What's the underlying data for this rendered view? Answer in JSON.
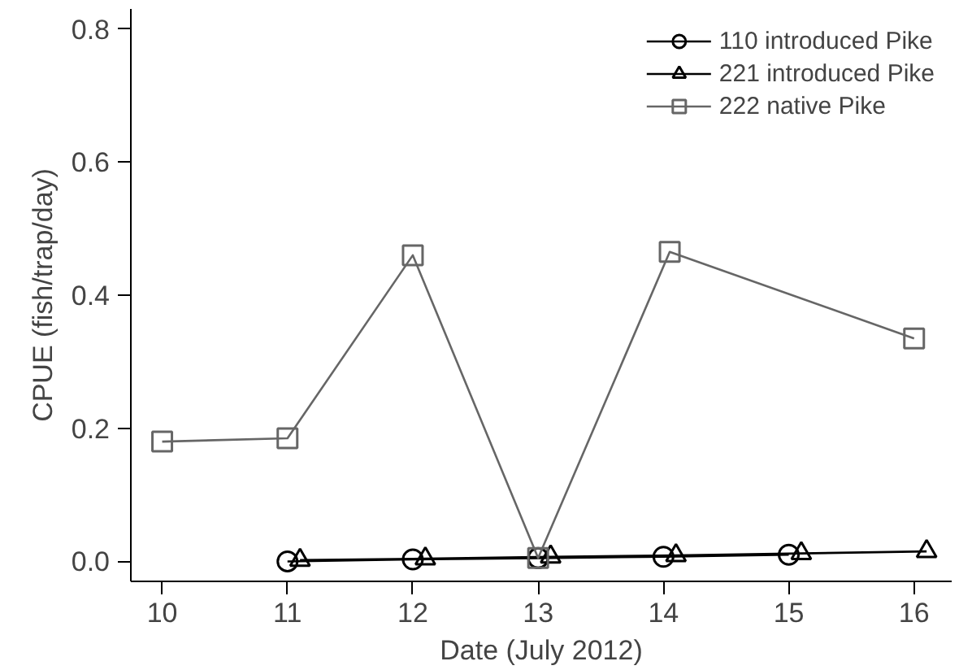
{
  "chart_data": {
    "type": "line",
    "xlabel": "Date (July 2012)",
    "ylabel": "CPUE (fish/trap/day)",
    "xlim": [
      9.75,
      16.3
    ],
    "xticks": [
      {
        "value": 10,
        "label": "10"
      },
      {
        "value": 11,
        "label": "11"
      },
      {
        "value": 12,
        "label": "12"
      },
      {
        "value": 13,
        "label": "13"
      },
      {
        "value": 14,
        "label": "14"
      },
      {
        "value": 15,
        "label": "15"
      },
      {
        "value": 16,
        "label": "16"
      }
    ],
    "ylim": [
      -0.03,
      0.83
    ],
    "yticks": [
      {
        "value": 0,
        "label": "0.0"
      },
      {
        "value": 0.2,
        "label": "0.2"
      },
      {
        "value": 0.4,
        "label": "0.4"
      },
      {
        "value": 0.6,
        "label": "0.6"
      },
      {
        "value": 0.8,
        "label": "0.8"
      }
    ],
    "grid": false,
    "legend": "top right",
    "line_style": "solid",
    "series": [
      {
        "name": "110 introduced Pike",
        "color": "#000000",
        "marker": "circle",
        "x": [
          11,
          12,
          13,
          14,
          15
        ],
        "values": [
          0.0,
          0.003,
          0.005,
          0.007,
          0.01
        ]
      },
      {
        "name": "221 introduced Pike",
        "color": "#000000",
        "marker": "triangle",
        "x": [
          11.1,
          12.1,
          13.1,
          14.1,
          15.1,
          16.1
        ],
        "values": [
          0.002,
          0.004,
          0.007,
          0.009,
          0.012,
          0.015
        ]
      },
      {
        "name": "222 native Pike",
        "color": "#666666",
        "marker": "square",
        "x": [
          10,
          11,
          12,
          13,
          14.05,
          16
        ],
        "values": [
          0.18,
          0.185,
          0.46,
          0.005,
          0.465,
          0.335
        ]
      }
    ]
  }
}
